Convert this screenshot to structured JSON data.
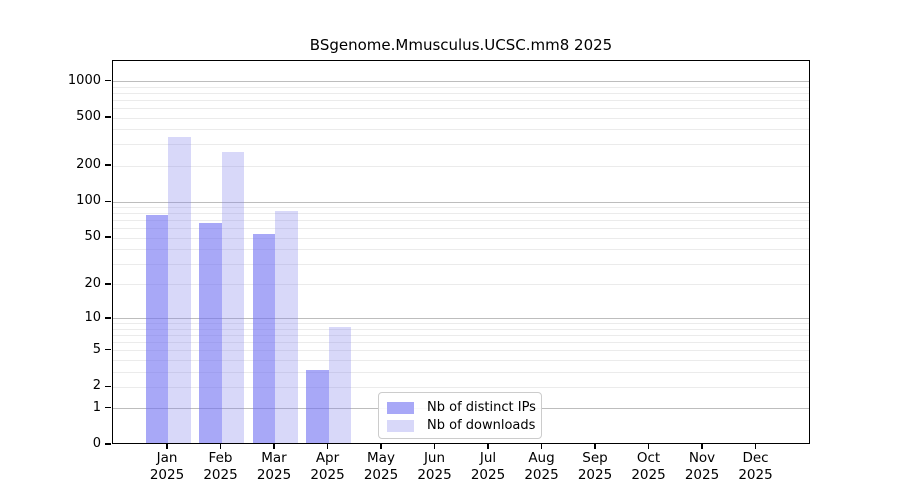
{
  "figure": {
    "background": "#ffffff",
    "kind": "bioconductor-download-stats-plot"
  },
  "chart_data": {
    "type": "bar",
    "title": "BSgenome.Mmusculus.UCSC.mm8 2025",
    "categories": [
      "Jan",
      "Feb",
      "Mar",
      "Apr",
      "May",
      "Jun",
      "Jul",
      "Aug",
      "Sep",
      "Oct",
      "Nov",
      "Dec"
    ],
    "category_year": "2025",
    "series": [
      {
        "name": "Nb of distinct IPs",
        "color": "#a8a8f7",
        "fill": "rgba(110,110,242,0.6)",
        "values": [
          75,
          64,
          52,
          3,
          0,
          0,
          0,
          0,
          0,
          0,
          0,
          0
        ]
      },
      {
        "name": "Nb of downloads",
        "color": "#d8d8f9",
        "fill": "rgba(125,125,235,0.3)",
        "values": [
          335,
          250,
          81,
          8,
          0,
          0,
          0,
          0,
          0,
          0,
          0,
          0
        ]
      }
    ],
    "y_ticks": [
      0,
      1,
      2,
      5,
      10,
      20,
      50,
      100,
      200,
      500,
      1000
    ],
    "y_scale": "log1p",
    "ylim": [
      0,
      1480
    ],
    "grid": true,
    "grid_major_color": "#bdbdbd",
    "grid_minor_color": "#ebebeb",
    "axis_color": "#000000",
    "legend_position": "lower center (inset)"
  }
}
